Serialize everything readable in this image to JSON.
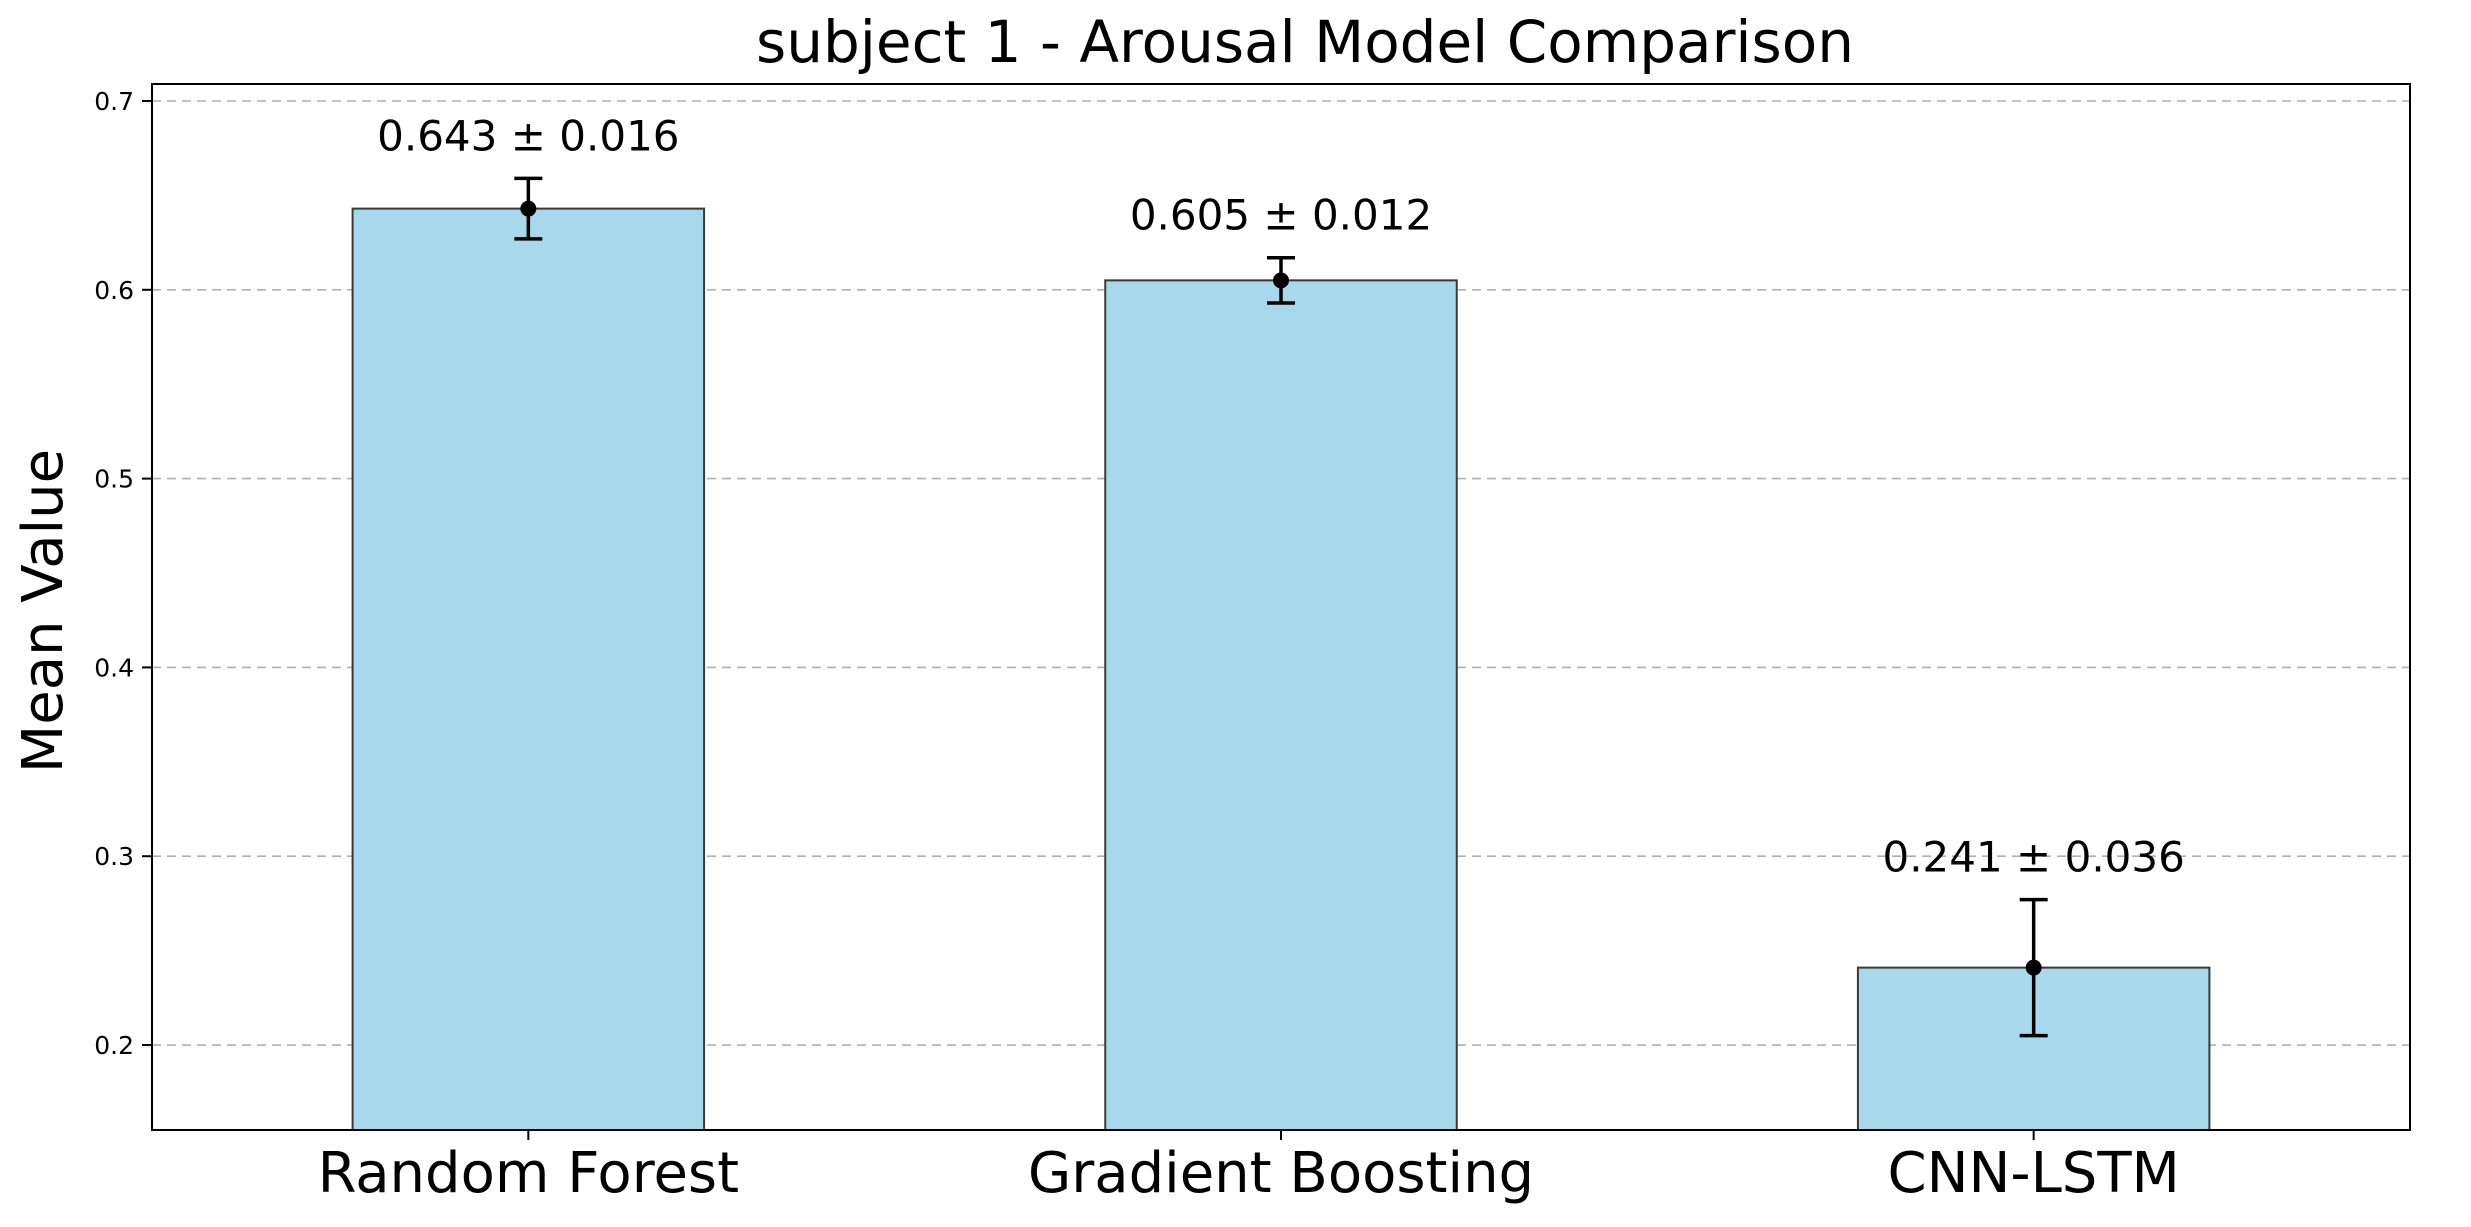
{
  "chart_data": {
    "type": "bar",
    "title": "subject 1 - Arousal Model Comparison",
    "xlabel": "",
    "ylabel": "Mean Value",
    "categories": [
      "Random Forest",
      "Gradient Boosting",
      "CNN-LSTM"
    ],
    "values": [
      0.643,
      0.605,
      0.241
    ],
    "errors": [
      0.016,
      0.012,
      0.036
    ],
    "data_labels": [
      "0.643 ± 0.016",
      "0.605 ± 0.012",
      "0.241 ± 0.036"
    ],
    "ylim": [
      0.155,
      0.709
    ],
    "yticks": [
      0.2,
      0.3,
      0.4,
      0.5,
      0.6,
      0.7
    ],
    "ytick_labels": [
      "0.2",
      "0.3",
      "0.4",
      "0.5",
      "0.6",
      "0.7"
    ],
    "grid": "y-dashed",
    "bar_color": "#a8d8ec",
    "bar_edge_color": "#3a3a3a",
    "error_color": "#000000"
  }
}
